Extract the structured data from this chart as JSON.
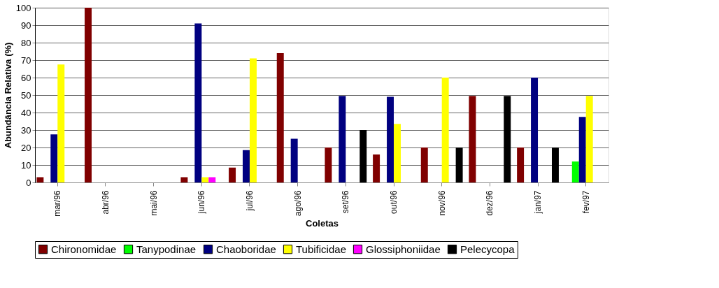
{
  "chart_data": {
    "type": "bar",
    "xlabel": "Coletas",
    "ylabel": "Abundância Relativa (%)",
    "categories": [
      "mar/96",
      "abr/96",
      "mai/96",
      "jun/96",
      "jul/96",
      "ago/96",
      "set/96",
      "out/96",
      "nov/96",
      "dez/96",
      "jan/97",
      "fev/97"
    ],
    "series": [
      {
        "name": "Chironomidae",
        "color": "#800000",
        "values": [
          3,
          100,
          0,
          3,
          8.5,
          74,
          20,
          16,
          20,
          49.5,
          20,
          0
        ]
      },
      {
        "name": "Tanypodinae",
        "color": "#00ff00",
        "values": [
          0,
          0,
          0,
          0,
          0,
          0,
          0,
          0,
          0,
          0,
          0,
          12
        ]
      },
      {
        "name": "Chaoboridae",
        "color": "#000080",
        "values": [
          27.5,
          0,
          0,
          91,
          18.5,
          25,
          49.5,
          49,
          0,
          0,
          60,
          37.5
        ]
      },
      {
        "name": "Tubificidae",
        "color": "#ffff00",
        "values": [
          67.5,
          0,
          0,
          3,
          71,
          0,
          0,
          33.5,
          60,
          0,
          0,
          49.5
        ]
      },
      {
        "name": "Glossiphoniidae",
        "color": "#ff00ff",
        "values": [
          0,
          0,
          0,
          3,
          0,
          0,
          0,
          0,
          0,
          0,
          0,
          0
        ]
      },
      {
        "name": "Pelecycopa",
        "color": "#000000",
        "values": [
          0,
          0,
          0,
          0,
          0,
          0,
          30,
          0,
          20,
          49.5,
          20,
          0
        ]
      }
    ],
    "ylim": [
      0,
      100
    ],
    "yticks": [
      0,
      10,
      20,
      30,
      40,
      50,
      60,
      70,
      80,
      90,
      100
    ],
    "grid": "y",
    "legend": "bottom"
  }
}
